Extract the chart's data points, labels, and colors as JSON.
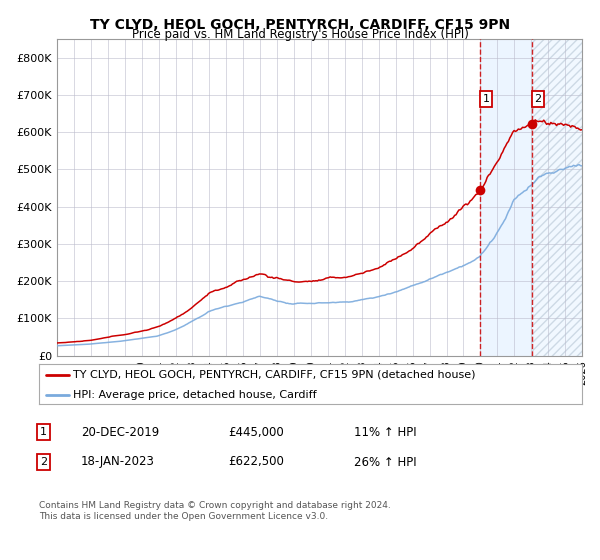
{
  "title": "TY CLYD, HEOL GOCH, PENTYRCH, CARDIFF, CF15 9PN",
  "subtitle": "Price paid vs. HM Land Registry's House Price Index (HPI)",
  "red_line_label": "TY CLYD, HEOL GOCH, PENTYRCH, CARDIFF, CF15 9PN (detached house)",
  "blue_line_label": "HPI: Average price, detached house, Cardiff",
  "annotation1_date": "20-DEC-2019",
  "annotation1_price": 445000,
  "annotation1_pct": "11% ↑ HPI",
  "annotation2_date": "18-JAN-2023",
  "annotation2_price": 622500,
  "annotation2_pct": "26% ↑ HPI",
  "sale1_x": 2019.97,
  "sale2_x": 2023.05,
  "ylim": [
    0,
    850000
  ],
  "yticks": [
    0,
    100000,
    200000,
    300000,
    400000,
    500000,
    600000,
    700000,
    800000
  ],
  "ytick_labels": [
    "£0",
    "£100K",
    "£200K",
    "£300K",
    "£400K",
    "£500K",
    "£600K",
    "£700K",
    "£800K"
  ],
  "red_color": "#cc0000",
  "blue_color": "#7aaadd",
  "bg_color": "#ffffff",
  "grid_color": "#bbbbcc",
  "footer": "Contains HM Land Registry data © Crown copyright and database right 2024.\nThis data is licensed under the Open Government Licence v3.0."
}
